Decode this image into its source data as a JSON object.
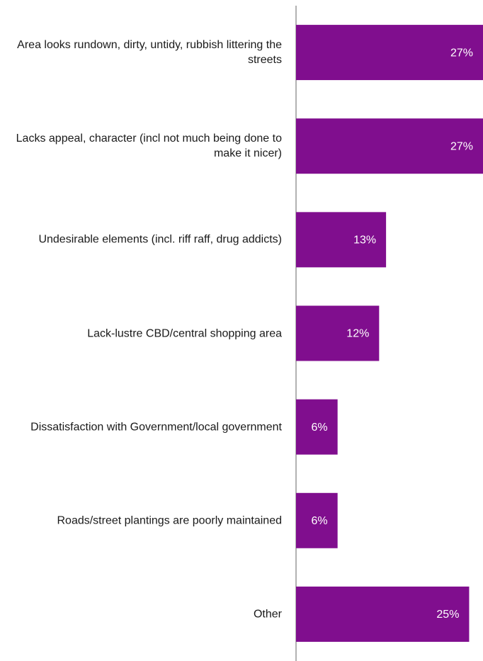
{
  "chart_data": {
    "type": "bar",
    "orientation": "horizontal",
    "categories": [
      "Area looks rundown, dirty, untidy, rubbish littering the streets",
      "Lacks appeal, character (incl not much being done to make it nicer)",
      "Undesirable elements (incl. riff raff, drug addicts)",
      "Lack-lustre CBD/central shopping area",
      "Dissatisfaction with Government/local government",
      "Roads/street plantings are poorly maintained",
      "Other"
    ],
    "values": [
      27,
      27,
      13,
      12,
      6,
      6,
      25
    ],
    "value_labels": [
      "27%",
      "27%",
      "13%",
      "12%",
      "6%",
      "6%",
      "25%"
    ],
    "color": "#800e8e",
    "xlim": [
      0,
      27
    ]
  }
}
